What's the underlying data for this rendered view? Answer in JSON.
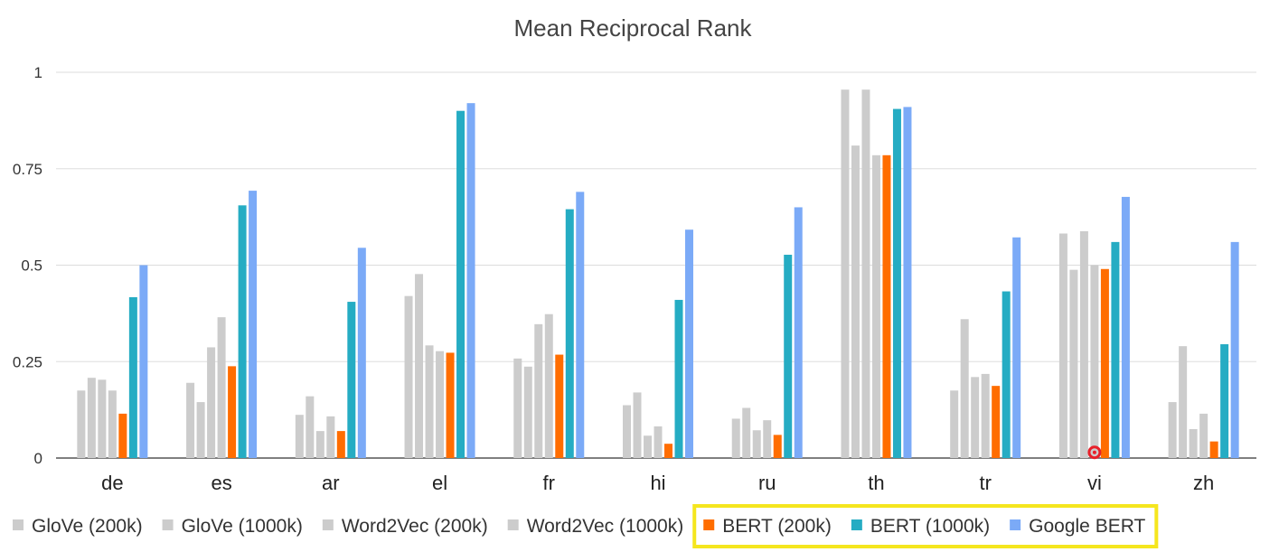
{
  "chart_data": {
    "type": "bar",
    "title": "Mean Reciprocal Rank",
    "xlabel": "",
    "ylabel": "",
    "ylim": [
      0,
      1
    ],
    "yticks": [
      {
        "value": 0,
        "label": "0"
      },
      {
        "value": 0.25,
        "label": "0.25"
      },
      {
        "value": 0.5,
        "label": "0.5"
      },
      {
        "value": 0.75,
        "label": "0.75"
      },
      {
        "value": 1,
        "label": "1"
      }
    ],
    "grid": true,
    "legend_position": "bottom",
    "legend_highlight": {
      "series": [
        "BERT (200k)",
        "BERT (1000k)",
        "Google BERT"
      ],
      "color": "#f5e61e"
    },
    "categories": [
      "de",
      "es",
      "ar",
      "el",
      "fr",
      "hi",
      "ru",
      "th",
      "tr",
      "vi",
      "zh"
    ],
    "series": [
      {
        "name": "GloVe (200k)",
        "color": "#cccccc",
        "values": [
          0.175,
          0.195,
          0.112,
          0.42,
          0.258,
          0.137,
          0.102,
          0.955,
          0.175,
          0.582,
          0.145
        ]
      },
      {
        "name": "GloVe (1000k)",
        "color": "#cccccc",
        "values": [
          0.208,
          0.145,
          0.16,
          0.477,
          0.237,
          0.17,
          0.13,
          0.81,
          0.36,
          0.488,
          0.29
        ]
      },
      {
        "name": "Word2Vec (200k)",
        "color": "#cccccc",
        "values": [
          0.203,
          0.287,
          0.07,
          0.292,
          0.347,
          0.058,
          0.072,
          0.955,
          0.21,
          0.588,
          0.075
        ]
      },
      {
        "name": "Word2Vec (1000k)",
        "color": "#cccccc",
        "values": [
          0.175,
          0.365,
          0.108,
          0.277,
          0.373,
          0.082,
          0.098,
          0.785,
          0.218,
          0.5,
          0.115
        ]
      },
      {
        "name": "BERT (200k)",
        "color": "#ff6d00",
        "values": [
          0.115,
          0.238,
          0.07,
          0.273,
          0.268,
          0.037,
          0.06,
          0.785,
          0.187,
          0.49,
          0.043
        ]
      },
      {
        "name": "BERT (1000k)",
        "color": "#25acc3",
        "values": [
          0.417,
          0.655,
          0.405,
          0.9,
          0.645,
          0.41,
          0.527,
          0.905,
          0.432,
          0.56,
          0.295
        ]
      },
      {
        "name": "Google BERT",
        "color": "#7baaf7",
        "values": [
          0.5,
          0.693,
          0.545,
          0.92,
          0.69,
          0.592,
          0.65,
          0.91,
          0.572,
          0.677,
          0.56
        ]
      }
    ],
    "pointer_marker": {
      "category": "vi",
      "value": 0.01
    }
  }
}
